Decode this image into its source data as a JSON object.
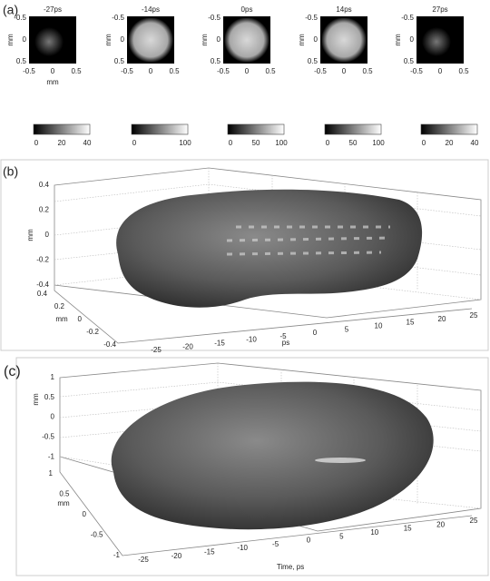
{
  "panel_a": {
    "label": "(a)",
    "x_label": "mm",
    "y_label": "mm",
    "x_ticks": [
      "-0.5",
      "0",
      "0.5"
    ],
    "y_ticks": [
      "-0.5",
      "0",
      "0.5"
    ],
    "frames": [
      {
        "title": "-27ps",
        "colorbar_ticks": [
          "0",
          "20",
          "40"
        ]
      },
      {
        "title": "-14ps",
        "colorbar_ticks": [
          "0",
          "100"
        ]
      },
      {
        "title": "0ps",
        "colorbar_ticks": [
          "0",
          "50",
          "100"
        ]
      },
      {
        "title": "14ps",
        "colorbar_ticks": [
          "0",
          "50",
          "100"
        ]
      },
      {
        "title": "27ps",
        "colorbar_ticks": [
          "0",
          "20",
          "40"
        ]
      }
    ]
  },
  "panel_b": {
    "label": "(b)",
    "z_label": "mm",
    "z_ticks": [
      "0.4",
      "0.2",
      "0",
      "-0.2",
      "-0.4"
    ],
    "y_label": "mm",
    "y_ticks": [
      "0.4",
      "0.2",
      "0",
      "-0.2",
      "-0.4"
    ],
    "x_label": "ps",
    "x_ticks": [
      "-25",
      "-20",
      "-15",
      "-10",
      "-5",
      "0",
      "5",
      "10",
      "15",
      "20",
      "25"
    ]
  },
  "panel_c": {
    "label": "(c)",
    "z_label": "mm",
    "z_ticks": [
      "1",
      "0.5",
      "0",
      "-0.5",
      "-1"
    ],
    "y_label": "mm",
    "y_ticks": [
      "1",
      "0.5",
      "0",
      "-0.5",
      "-1"
    ],
    "x_label": "Time, ps",
    "x_ticks": [
      "-25",
      "-20",
      "-15",
      "-10",
      "-5",
      "0",
      "5",
      "10",
      "15",
      "20",
      "25"
    ]
  }
}
